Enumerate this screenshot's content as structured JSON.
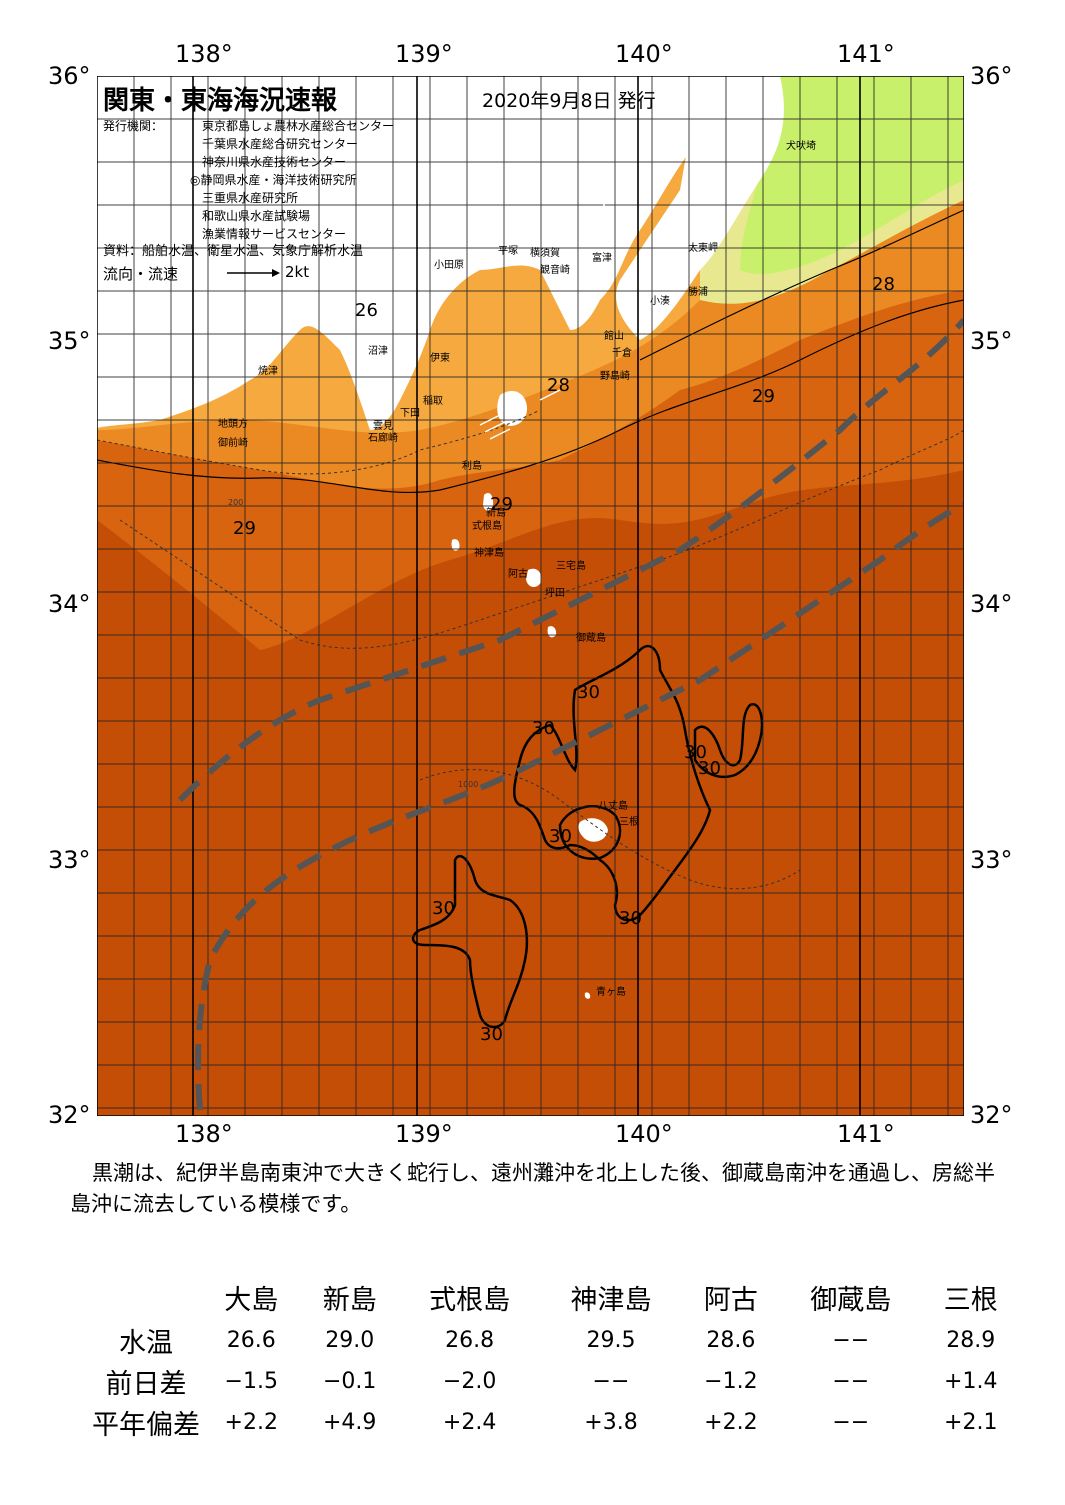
{
  "map": {
    "title": "関東・東海海況速報",
    "issue_date": "2020年9月8日 発行",
    "issuers_label": "発行機関：",
    "issuers": [
      "東京都島しょ農林水産総合センター",
      "千葉県水産総合研究センター",
      "神奈川県水産技術センター",
      "◎静岡県水産・海洋技術研究所",
      "三重県水産研究所",
      "和歌山県水産試験場",
      "漁業情報サービスセンター"
    ],
    "source": "資料：船舶水温、衛星水温、気象庁解析水温",
    "legend_label": "流向・流速",
    "legend_speed": "2kt",
    "lon_labels": [
      "138°",
      "139°",
      "140°",
      "141°"
    ],
    "lat_labels": [
      "36°",
      "35°",
      "34°",
      "33°",
      "32°"
    ],
    "colors": {
      "ocean_29": "#d86410",
      "ocean_30": "#c44e05",
      "coastal_28": "#eb8a22",
      "coastal_27": "#f5a93e",
      "cold_26": "#c8f06a",
      "cold_27": "#e8e890",
      "land": "#ffffff",
      "grid": "#222222",
      "kuroshio_axis": "#555555"
    },
    "place_names": [
      "犬吠埼",
      "太東岬",
      "勝浦",
      "小湊",
      "富津",
      "横須賀",
      "観音崎",
      "平塚",
      "小田原",
      "館山",
      "千倉",
      "野島崎",
      "沼津",
      "伊東",
      "稲取",
      "下田",
      "雲見",
      "石廊崎",
      "焼津",
      "御前崎",
      "地頭方",
      "利島",
      "新島",
      "式根島",
      "神津島",
      "三宅島",
      "阿古",
      "坪田",
      "御蔵島",
      "八丈島",
      "三根",
      "青ヶ島"
    ],
    "isotherm_labels": [
      "26",
      "28",
      "28",
      "29",
      "29",
      "29",
      "30",
      "30",
      "30",
      "30",
      "30",
      "30",
      "30",
      "30"
    ],
    "depth_labels": [
      "200",
      "1000"
    ]
  },
  "summary": "黒潮は、紀伊半島南東沖で大きく蛇行し、遠州灘沖を北上した後、御蔵島南沖を通過し、房総半島沖に流去している模様です。",
  "table": {
    "columns": [
      "大島",
      "新島",
      "式根島",
      "神津島",
      "阿古",
      "御蔵島",
      "三根"
    ],
    "rows": [
      {
        "label": "水温",
        "values": [
          "26.6",
          "29.0",
          "26.8",
          "29.5",
          "28.6",
          "−−",
          "28.9"
        ]
      },
      {
        "label": "前日差",
        "values": [
          "−1.5",
          "−0.1",
          "−2.0",
          "−−",
          "−1.2",
          "−−",
          "+1.4"
        ]
      },
      {
        "label": "平年偏差",
        "values": [
          "+2.2",
          "+4.9",
          "+2.4",
          "+3.8",
          "+2.2",
          "−−",
          "+2.1"
        ]
      }
    ]
  }
}
